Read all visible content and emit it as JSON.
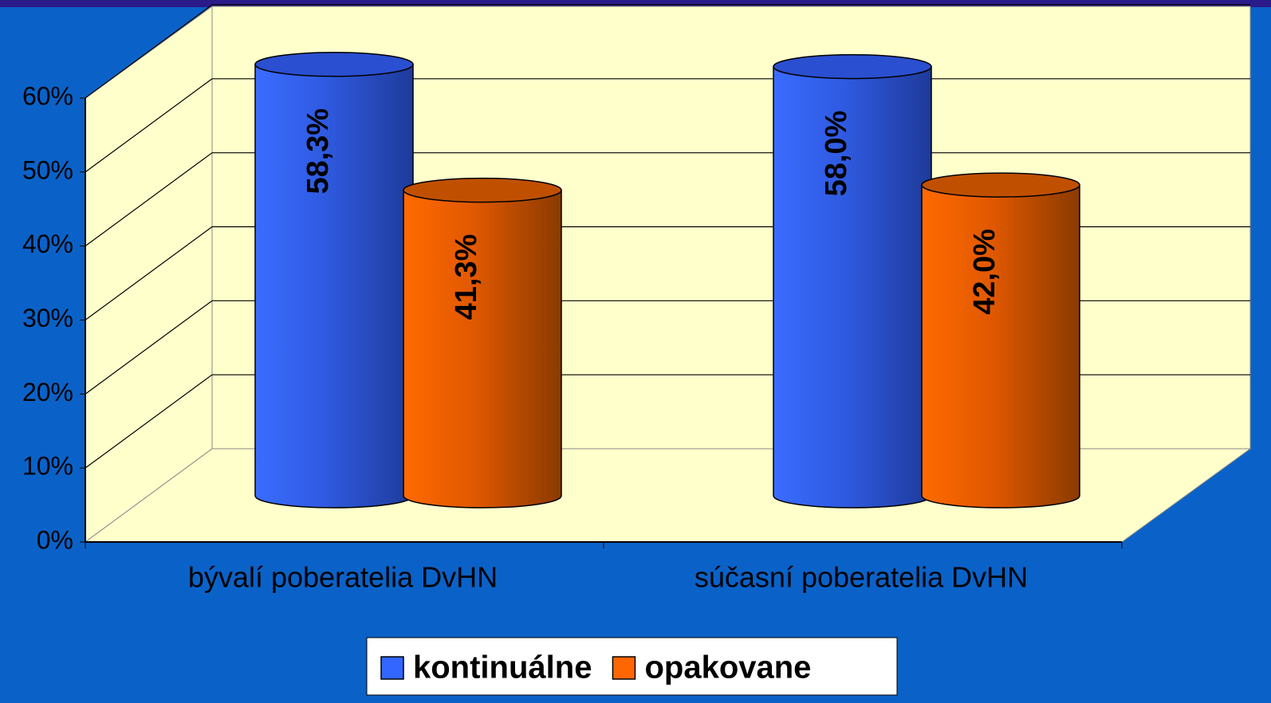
{
  "chart_data": {
    "type": "cylinder3d",
    "categories": [
      "bývalí poberatelia DvHN",
      "súčasní poberatelia DvHN"
    ],
    "series": [
      {
        "name": "kontinuálne",
        "color": "#3366ff",
        "values": [
          58.3,
          58.0
        ],
        "value_labels": [
          "58,3%",
          "58,0%"
        ]
      },
      {
        "name": "opakovane",
        "color": "#ff6600",
        "values": [
          41.3,
          42.0
        ],
        "value_labels": [
          "41,3%",
          "42,0%"
        ]
      }
    ],
    "ylim": [
      0,
      60
    ],
    "yticks": [
      {
        "value": 0,
        "label": "0%"
      },
      {
        "value": 10,
        "label": "10%"
      },
      {
        "value": 20,
        "label": "20%"
      },
      {
        "value": 30,
        "label": "30%"
      },
      {
        "value": 40,
        "label": "40%"
      },
      {
        "value": 50,
        "label": "50%"
      },
      {
        "value": 60,
        "label": "60%"
      }
    ],
    "grid": true,
    "legend": "bottom"
  }
}
